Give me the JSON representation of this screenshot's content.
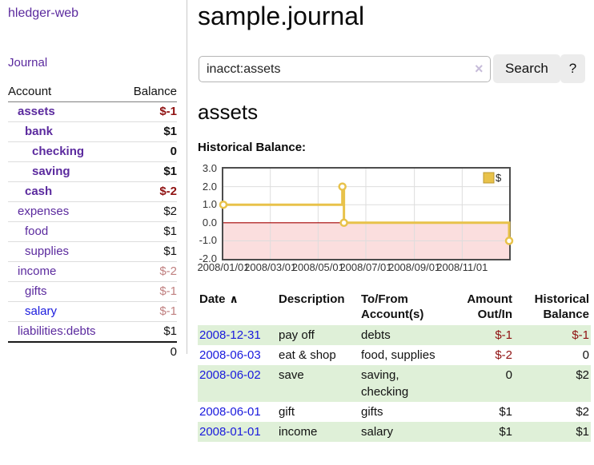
{
  "app_title": "hledger-web",
  "sidebar": {
    "journal_link": "Journal",
    "account_header": "Account",
    "balance_header": "Balance",
    "accounts": [
      {
        "name": "assets",
        "balance": "$-1",
        "indent": 1,
        "bold": true,
        "balance_color": "negative"
      },
      {
        "name": "bank",
        "balance": "$1",
        "indent": 2,
        "bold": true,
        "balance_color": "normal"
      },
      {
        "name": "checking",
        "balance": "0",
        "indent": 3,
        "bold": true,
        "balance_color": "normal"
      },
      {
        "name": "saving",
        "balance": "$1",
        "indent": 3,
        "bold": true,
        "balance_color": "normal"
      },
      {
        "name": "cash",
        "balance": "$-2",
        "indent": 2,
        "bold": true,
        "balance_color": "negative"
      },
      {
        "name": "expenses",
        "balance": "$2",
        "indent": 1,
        "bold": false,
        "balance_color": "normal"
      },
      {
        "name": "food",
        "balance": "$1",
        "indent": 2,
        "bold": false,
        "balance_color": "normal"
      },
      {
        "name": "supplies",
        "balance": "$1",
        "indent": 2,
        "bold": false,
        "balance_color": "normal"
      },
      {
        "name": "income",
        "balance": "$-2",
        "indent": 1,
        "bold": false,
        "balance_color": "negative-soft"
      },
      {
        "name": "gifts",
        "balance": "$-1",
        "indent": 2,
        "bold": false,
        "balance_color": "negative-soft"
      },
      {
        "name": "salary",
        "balance": "$-1",
        "indent": 2,
        "bold": false,
        "balance_color": "negative-soft",
        "unvisited": true
      },
      {
        "name": "liabilities:debts",
        "balance": "$1",
        "indent": 1,
        "bold": false,
        "balance_color": "normal"
      }
    ],
    "total": "0"
  },
  "main": {
    "title": "sample.journal",
    "search": {
      "value": "inacct:assets",
      "clear_icon": "×",
      "search_button": "Search",
      "help_button": "?"
    },
    "account_heading": "assets",
    "section_heading": "Historical Balance:"
  },
  "chart_data": {
    "type": "line",
    "step": true,
    "title": "Historical Balance:",
    "legend": [
      {
        "label": "$",
        "position": "top-right"
      }
    ],
    "x_range": [
      "2008-01-01",
      "2008-12-31"
    ],
    "ylim": [
      -2,
      3
    ],
    "yticks": [
      {
        "label": "3.0",
        "value": 3
      },
      {
        "label": "2.0",
        "value": 2
      },
      {
        "label": "1.0",
        "value": 1
      },
      {
        "label": "0.0",
        "value": 0
      },
      {
        "label": "-1.0",
        "value": -1
      },
      {
        "label": "-2.0",
        "value": -2
      }
    ],
    "xticks": [
      {
        "label": "2008/01/01",
        "date": "2008-01-01"
      },
      {
        "label": "2008/03/01",
        "date": "2008-03-01"
      },
      {
        "label": "2008/05/01",
        "date": "2008-05-01"
      },
      {
        "label": "2008/07/01",
        "date": "2008-07-01"
      },
      {
        "label": "2008/09/01",
        "date": "2008-09-01"
      },
      {
        "label": "2008/11/01",
        "date": "2008-11-01"
      }
    ],
    "series": [
      {
        "name": "$",
        "points": [
          {
            "date": "2008-01-01",
            "value": 1
          },
          {
            "date": "2008-06-01",
            "value": 2
          },
          {
            "date": "2008-06-03",
            "value": 0
          },
          {
            "date": "2008-12-31",
            "value": -1
          }
        ]
      }
    ],
    "grid": true,
    "colors": {
      "line": "#e8c24a",
      "legend_square": "#e8c24a",
      "legend_border": "#bb9830",
      "marker_fill": "#ffffff",
      "negative_region": "#fbdede",
      "zero_line": "#a40000",
      "grid": "#dddddd",
      "border": "#4d4d4d"
    }
  },
  "register": {
    "headers": {
      "date": "Date",
      "sort_icon": "∧",
      "description": "Description",
      "accounts": "To/From\nAccount(s)",
      "amount": "Amount\nOut/In",
      "balance": "Historical\nBalance"
    },
    "rows": [
      {
        "date": "2008-12-31",
        "description": "pay off",
        "accounts": "debts",
        "amount": "$-1",
        "balance": "$-1",
        "amount_neg": true,
        "balance_neg": true
      },
      {
        "date": "2008-06-03",
        "description": "eat & shop",
        "accounts": "food, supplies",
        "amount": "$-2",
        "balance": "0",
        "amount_neg": true,
        "balance_neg": false
      },
      {
        "date": "2008-06-02",
        "description": "save",
        "accounts": "saving,\nchecking",
        "amount": "0",
        "balance": "$2",
        "amount_neg": false,
        "balance_neg": false
      },
      {
        "date": "2008-06-01",
        "description": "gift",
        "accounts": "gifts",
        "amount": "$1",
        "balance": "$2",
        "amount_neg": false,
        "balance_neg": false
      },
      {
        "date": "2008-01-01",
        "description": "income",
        "accounts": "salary",
        "amount": "$1",
        "balance": "$1",
        "amount_neg": false,
        "balance_neg": false
      }
    ]
  }
}
